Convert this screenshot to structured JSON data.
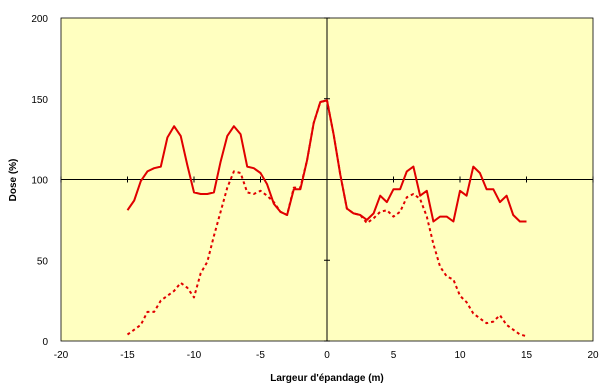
{
  "chart_data": {
    "type": "line",
    "title": "",
    "xlabel": "Largeur d'épandage (m)",
    "ylabel": "Dose (%)",
    "xlim": [
      -20,
      20
    ],
    "ylim": [
      0,
      200
    ],
    "x_ticks": [
      "-20",
      "-15",
      "-10",
      "-5",
      "0",
      "5",
      "10",
      "15",
      "20"
    ],
    "y_ticks": [
      "0",
      "50",
      "100",
      "150",
      "200"
    ],
    "plot_background": "#FFFFC0",
    "grid": false,
    "legend": "none",
    "series": [
      {
        "style": "solid",
        "color": "#E00000",
        "x": [
          -15,
          -14.5,
          -14,
          -13.5,
          -13,
          -12.5,
          -12,
          -11.5,
          -11,
          -10.5,
          -10,
          -9.5,
          -9,
          -8.5,
          -8,
          -7.5,
          -7,
          -6.5,
          -6,
          -5.5,
          -5,
          -4.5,
          -4,
          -3.5,
          -3,
          -2.5,
          -2,
          -1.5,
          -1,
          -0.5,
          0,
          0.5,
          1,
          1.5,
          2,
          2.5,
          3,
          3.5,
          4,
          4.5,
          5,
          5.5,
          6,
          6.5,
          7,
          7.5,
          8,
          8.5,
          9,
          9.5,
          10,
          10.5,
          11,
          11.5,
          12,
          12.5,
          13,
          13.5,
          14,
          14.5,
          15
        ],
        "y": [
          81,
          87,
          99,
          105,
          107,
          108,
          126,
          133,
          127,
          109,
          92,
          91,
          91,
          92,
          111,
          127,
          133,
          128,
          108,
          107,
          104,
          97,
          85,
          80,
          78,
          94,
          94,
          112,
          135,
          148,
          149,
          128,
          103,
          82,
          79,
          78,
          75,
          79,
          90,
          86,
          94,
          94,
          105,
          108,
          90,
          93,
          74,
          77,
          77,
          74,
          93,
          90,
          108,
          104,
          94,
          94,
          86,
          90,
          78,
          74,
          74
        ]
      },
      {
        "style": "dotted",
        "color": "#E00000",
        "x": [
          -15,
          -14.5,
          -14,
          -13.5,
          -13,
          -12.5,
          -12,
          -11.5,
          -11,
          -10.5,
          -10,
          -9.5,
          -9,
          -8.5,
          -8,
          -7.5,
          -7,
          -6.5,
          -6,
          -5.5,
          -5,
          -4.5,
          -4,
          -3.5,
          -3,
          -2.5,
          -2,
          -1.5,
          -1,
          -0.5,
          0,
          0.5,
          1,
          1.5,
          2,
          2.5,
          3,
          3.5,
          4,
          4.5,
          5,
          5.5,
          6,
          6.5,
          7,
          7.5,
          8,
          8.5,
          9,
          9.5,
          10,
          10.5,
          11,
          11.5,
          12,
          12.5,
          13,
          13.5,
          14,
          14.5,
          15
        ],
        "y": [
          4,
          7,
          10,
          18,
          18,
          25,
          28,
          31,
          36,
          33,
          27,
          42,
          49,
          65,
          80,
          95,
          105,
          104,
          92,
          91,
          93,
          90,
          86,
          80,
          78,
          95,
          95,
          112,
          135,
          148,
          149,
          128,
          103,
          82,
          79,
          78,
          73,
          76,
          80,
          81,
          77,
          80,
          89,
          91,
          88,
          77,
          60,
          46,
          40,
          38,
          28,
          24,
          17,
          14,
          11,
          12,
          16,
          10,
          7,
          4,
          3
        ]
      }
    ]
  }
}
